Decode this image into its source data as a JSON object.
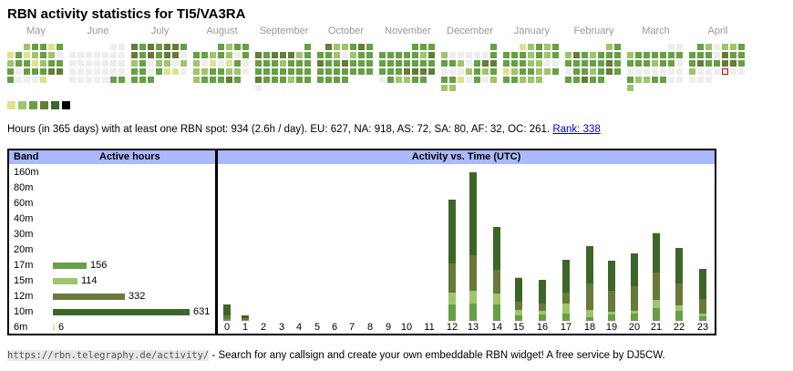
{
  "title": "RBN activity statistics for TI5/VA3RA",
  "palette": {
    "empty": "#eeeeee",
    "l1": "#dde38c",
    "l2": "#9fc46a",
    "l3": "#66a044",
    "l4": "#677a3a",
    "l5": "#3c6628",
    "l6": "#000000",
    "today_outline": "#dd0000",
    "header_bg": "#a9b9fb"
  },
  "legend_levels": [
    1,
    2,
    3,
    4,
    5,
    6
  ],
  "months": [
    {
      "name": "May",
      "weeks": [
        [
          null,
          null,
          2,
          3,
          3,
          1,
          3
        ],
        [
          1,
          3,
          1,
          2,
          3,
          2,
          0
        ],
        [
          2,
          3,
          3,
          1,
          2,
          3,
          3
        ],
        [
          3,
          0,
          3,
          3,
          3,
          4,
          4
        ],
        [
          3,
          0,
          0,
          0,
          1,
          null,
          null
        ]
      ]
    },
    {
      "name": "June",
      "weeks": [
        [
          null,
          null,
          null,
          null,
          null,
          0,
          0
        ],
        [
          0,
          0,
          0,
          0,
          0,
          0,
          0
        ],
        [
          0,
          0,
          0,
          0,
          0,
          0,
          0
        ],
        [
          0,
          0,
          0,
          0,
          0,
          0,
          0
        ],
        [
          0,
          0,
          0,
          0,
          0,
          3,
          3
        ]
      ]
    },
    {
      "name": "July",
      "weeks": [
        [
          4,
          3,
          4,
          3,
          4,
          4,
          3
        ],
        [
          4,
          3,
          4,
          3,
          4,
          4,
          0
        ],
        [
          2,
          3,
          0,
          2,
          2,
          0,
          2
        ],
        [
          3,
          3,
          0,
          3,
          1,
          1,
          0
        ],
        [
          3,
          3,
          3,
          null,
          null,
          null,
          null
        ]
      ]
    },
    {
      "name": "August",
      "weeks": [
        [
          null,
          null,
          null,
          3,
          2,
          3,
          3
        ],
        [
          3,
          3,
          2,
          3,
          2,
          0,
          3
        ],
        [
          2,
          0,
          1,
          0,
          1,
          3,
          0
        ],
        [
          2,
          2,
          3,
          3,
          2,
          2,
          0
        ],
        [
          2,
          3,
          3,
          3,
          4,
          3,
          null
        ]
      ]
    },
    {
      "name": "September",
      "weeks": [
        [
          null,
          null,
          null,
          null,
          null,
          null,
          3
        ],
        [
          4,
          3,
          4,
          4,
          4,
          2,
          3
        ],
        [
          3,
          3,
          3,
          2,
          3,
          3,
          3
        ],
        [
          3,
          3,
          3,
          3,
          3,
          3,
          3
        ],
        [
          4,
          3,
          3,
          3,
          2,
          3,
          3
        ],
        [
          0,
          null,
          null,
          null,
          null,
          null,
          null
        ]
      ]
    },
    {
      "name": "October",
      "weeks": [
        [
          null,
          4,
          2,
          2,
          3,
          4,
          3
        ],
        [
          3,
          3,
          2,
          0,
          2,
          3,
          3
        ],
        [
          4,
          3,
          3,
          4,
          3,
          3,
          3
        ],
        [
          3,
          3,
          3,
          3,
          3,
          3,
          3
        ],
        [
          3,
          3,
          3,
          3,
          null,
          null,
          null
        ]
      ]
    },
    {
      "name": "November",
      "weeks": [
        [
          null,
          null,
          null,
          null,
          3,
          3,
          3
        ],
        [
          3,
          3,
          3,
          3,
          3,
          2,
          4
        ],
        [
          3,
          3,
          3,
          3,
          3,
          3,
          3
        ],
        [
          3,
          3,
          3,
          4,
          4,
          4,
          4
        ],
        [
          0,
          3,
          2,
          2,
          3,
          3,
          null
        ]
      ]
    },
    {
      "name": "December",
      "weeks": [
        [
          null,
          null,
          null,
          null,
          null,
          null,
          3
        ],
        [
          2,
          0,
          0,
          0,
          0,
          0,
          3
        ],
        [
          3,
          3,
          2,
          0,
          3,
          4,
          4
        ],
        [
          0,
          0,
          0,
          2,
          3,
          2,
          3
        ],
        [
          3,
          3,
          1,
          0,
          3,
          0,
          2
        ],
        [
          2,
          2,
          null,
          null,
          null,
          null,
          null
        ]
      ]
    },
    {
      "name": "January",
      "weeks": [
        [
          null,
          null,
          1,
          2,
          3,
          2,
          3
        ],
        [
          3,
          3,
          3,
          2,
          3,
          2,
          3
        ],
        [
          3,
          3,
          3,
          2,
          2,
          0,
          0
        ],
        [
          1,
          2,
          3,
          3,
          2,
          2,
          3
        ],
        [
          3,
          3,
          2,
          2,
          2,
          null,
          null
        ]
      ]
    },
    {
      "name": "February",
      "weeks": [
        [
          null,
          null,
          null,
          null,
          null,
          2,
          3
        ],
        [
          2,
          4,
          3,
          2,
          3,
          3,
          3
        ],
        [
          3,
          3,
          3,
          3,
          3,
          4,
          3
        ],
        [
          0,
          3,
          3,
          2,
          3,
          4,
          3
        ],
        [
          3,
          3,
          4,
          3,
          3,
          null,
          null
        ]
      ]
    },
    {
      "name": "March",
      "weeks": [
        [
          null,
          null,
          null,
          null,
          null,
          0,
          0
        ],
        [
          2,
          3,
          3,
          3,
          3,
          3,
          3
        ],
        [
          3,
          3,
          3,
          2,
          3,
          3,
          0
        ],
        [
          0,
          0,
          0,
          0,
          0,
          0,
          0
        ],
        [
          3,
          2,
          2,
          3,
          3,
          0,
          0
        ],
        [
          2,
          null,
          null,
          null,
          null,
          null,
          null
        ]
      ]
    },
    {
      "name": "April",
      "weeks": [
        [
          null,
          3,
          2,
          0,
          2,
          2,
          3
        ],
        [
          3,
          3,
          3,
          0,
          4,
          3,
          3
        ],
        [
          3,
          4,
          3,
          3,
          4,
          4,
          3
        ],
        [
          2,
          0,
          0,
          0,
          "today",
          0,
          0
        ],
        [
          0,
          0,
          0,
          null,
          null,
          null,
          null
        ]
      ]
    }
  ],
  "summary": {
    "text": "Hours (in 365 days) with at least one RBN spot: 934 (2.6h / day). EU: 627, NA: 918, AS: 72, SA: 80, AF: 32, OC: 261.",
    "rank_link": "Rank: 338"
  },
  "band_table": {
    "col_band": "Band",
    "col_hours": "Active hours",
    "rows": [
      {
        "band": "160m",
        "hours": null,
        "color": ""
      },
      {
        "band": "80m",
        "hours": null,
        "color": ""
      },
      {
        "band": "60m",
        "hours": null,
        "color": ""
      },
      {
        "band": "40m",
        "hours": null,
        "color": ""
      },
      {
        "band": "30m",
        "hours": null,
        "color": ""
      },
      {
        "band": "20m",
        "hours": null,
        "color": ""
      },
      {
        "band": "17m",
        "hours": 156,
        "color": "#66a044"
      },
      {
        "band": "15m",
        "hours": 114,
        "color": "#9fc46a"
      },
      {
        "band": "12m",
        "hours": 332,
        "color": "#677a3a"
      },
      {
        "band": "10m",
        "hours": 631,
        "color": "#3c6628"
      },
      {
        "band": "6m",
        "hours": 6,
        "color": "#dde38c"
      }
    ]
  },
  "chart_data": {
    "type": "bar",
    "title": "Activity vs. Time (UTC)",
    "stacked": true,
    "categories": [
      "0",
      "1",
      "2",
      "3",
      "4",
      "5",
      "6",
      "7",
      "8",
      "9",
      "10",
      "11",
      "12",
      "13",
      "14",
      "15",
      "16",
      "17",
      "18",
      "19",
      "20",
      "21",
      "22",
      "23"
    ],
    "series": [
      {
        "name": "17m",
        "color": "#66a044",
        "values": [
          2,
          1,
          0,
          0,
          0,
          0,
          0,
          0,
          0,
          0,
          0,
          0,
          18,
          19,
          18,
          6,
          7,
          8,
          4,
          7,
          8,
          14,
          11,
          5
        ]
      },
      {
        "name": "15m",
        "color": "#9fc46a",
        "values": [
          0,
          0,
          0,
          0,
          0,
          0,
          0,
          0,
          0,
          0,
          0,
          0,
          13,
          14,
          12,
          6,
          4,
          11,
          8,
          3,
          3,
          9,
          6,
          3
        ]
      },
      {
        "name": "12m",
        "color": "#677a3a",
        "values": [
          4,
          2,
          0,
          0,
          0,
          0,
          0,
          0,
          0,
          0,
          0,
          0,
          32,
          39,
          26,
          9,
          8,
          12,
          29,
          23,
          27,
          30,
          24,
          16
        ]
      },
      {
        "name": "10m",
        "color": "#3c6628",
        "values": [
          12,
          3,
          0,
          0,
          0,
          0,
          0,
          0,
          0,
          0,
          0,
          0,
          70,
          91,
          47,
          26,
          26,
          36,
          41,
          33,
          36,
          43,
          39,
          33
        ]
      },
      {
        "name": "6m",
        "color": "#dde38c",
        "values": [
          0,
          0,
          0,
          0,
          0,
          0,
          0,
          0,
          0,
          0,
          0,
          0,
          0,
          0,
          0,
          1,
          0,
          0,
          0,
          0,
          0,
          1,
          0,
          0
        ]
      }
    ],
    "ymax": 163
  },
  "footer": {
    "url": "https://rbn.telegraphy.de/activity/",
    "text": " - Search for any callsign and create your own embeddable RBN widget! A free service by DJ5CW."
  }
}
